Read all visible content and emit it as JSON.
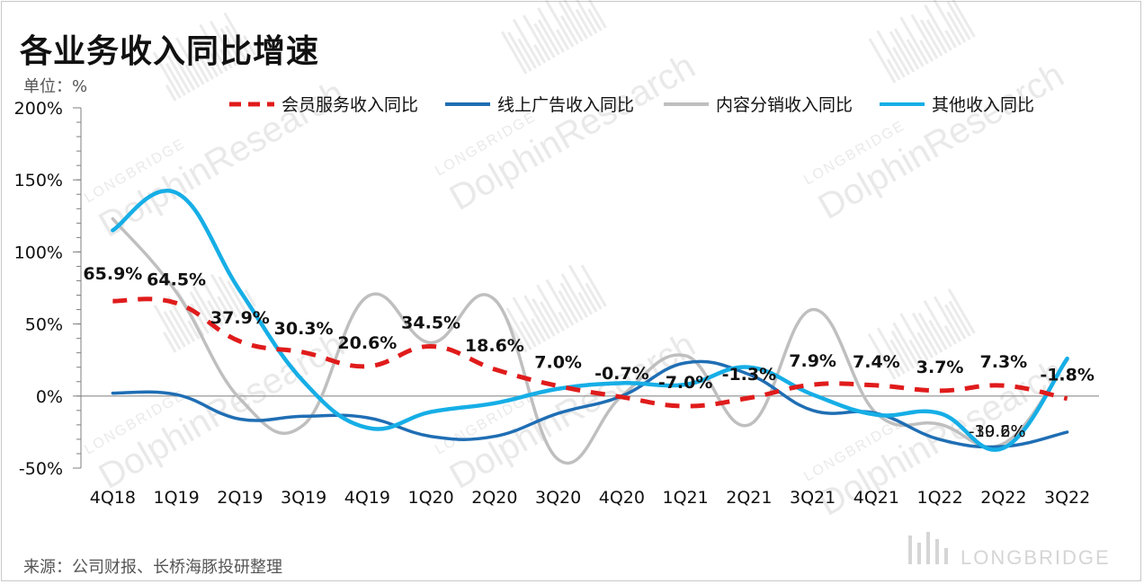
{
  "title": "各业务收入同比增速",
  "unit_label": "单位：%",
  "source": "来源：公司财报、长桥海豚投研整理",
  "watermark": {
    "brand_small": "LONGBRIDGE",
    "brand_big": "DolphinResearch",
    "corner": "LONGBRIDGE"
  },
  "colors": {
    "membership": "#e01b1b",
    "online_ads": "#1f6eb4",
    "content_distribution": "#bfbfbf",
    "other": "#16aee6",
    "axis": "#7f7f7f",
    "zero_line": "#8c8c8c",
    "label": "#111111"
  },
  "chart_data": {
    "type": "line",
    "categories": [
      "4Q18",
      "1Q19",
      "2Q19",
      "3Q19",
      "4Q19",
      "1Q20",
      "2Q20",
      "3Q20",
      "4Q20",
      "1Q21",
      "2Q21",
      "3Q21",
      "4Q21",
      "1Q22",
      "2Q22",
      "3Q22"
    ],
    "ylim": [
      -50,
      200
    ],
    "yticks": [
      -50,
      0,
      50,
      100,
      150,
      200
    ],
    "ytick_labels": [
      "-50%",
      "0%",
      "50%",
      "100%",
      "150%",
      "200%"
    ],
    "legend_position": "top",
    "grid": false,
    "smooth": true,
    "series": [
      {
        "key": "membership",
        "name": "会员服务收入同比",
        "style": "dashed",
        "values": [
          65.9,
          64.5,
          37.9,
          30.3,
          20.6,
          34.5,
          18.6,
          7.0,
          -0.7,
          -7.0,
          -1.3,
          7.9,
          7.4,
          3.7,
          7.3,
          -1.8
        ],
        "labels": [
          "65.9%",
          "64.5%",
          "37.9%",
          "30.3%",
          "20.6%",
          "34.5%",
          "18.6%",
          "7.0%",
          "-0.7%",
          "-7.0%",
          "-1.3%",
          "7.9%",
          "7.4%",
          "3.7%",
          "7.3%",
          "-1.8%"
        ]
      },
      {
        "key": "online_ads",
        "name": "线上广告收入同比",
        "style": "solid",
        "values": [
          2,
          1,
          -16,
          -14,
          -15,
          -28,
          -28,
          -12,
          0,
          23,
          15,
          -10,
          -12,
          -30.2,
          -35,
          -25
        ],
        "labels": []
      },
      {
        "key": "content_distribution",
        "name": "内容分销收入同比",
        "style": "solid",
        "values": [
          123,
          72,
          -2,
          -20,
          69,
          37,
          67,
          -44,
          0,
          28,
          -20,
          60,
          -12,
          -19.6,
          -33,
          25
        ],
        "labels": []
      },
      {
        "key": "other",
        "name": "其他收入同比",
        "style": "solid",
        "values": [
          115,
          141,
          73,
          10,
          -22,
          -11,
          -5,
          5,
          9,
          8,
          20,
          1,
          -13,
          -12,
          -36,
          26
        ],
        "labels": []
      }
    ],
    "extra_labels": [
      {
        "text": "-19.6%",
        "series": "content_distribution",
        "index": 13
      },
      {
        "text": "-30.2%",
        "series": "online_ads",
        "index": 13
      }
    ]
  }
}
